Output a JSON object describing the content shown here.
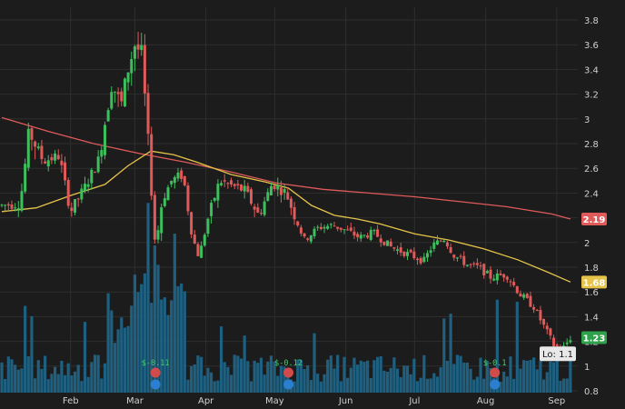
{
  "chart_data": {
    "type": "candlestick",
    "y_axis": {
      "range": [
        0.8,
        3.9
      ],
      "ticks": [
        "3.8",
        "3.6",
        "3.4",
        "3.2",
        "3",
        "2.8",
        "2.6",
        "2.4",
        "2.2",
        "2",
        "1.8",
        "1.6",
        "1.4",
        "1.2",
        "1",
        "0.8"
      ],
      "side": "right"
    },
    "x_axis": {
      "ticks": [
        {
          "label": "Feb",
          "day": 30
        },
        {
          "label": "Mar",
          "day": 58
        },
        {
          "label": "Apr",
          "day": 89
        },
        {
          "label": "May",
          "day": 119
        },
        {
          "label": "Jun",
          "day": 150
        },
        {
          "label": "Jul",
          "day": 180
        },
        {
          "label": "Aug",
          "day": 211
        },
        {
          "label": "Sep",
          "day": 242
        }
      ],
      "range_days": [
        0,
        248
      ]
    },
    "grid": true,
    "colors": {
      "background": "#1c1c1c",
      "grid": "#2e2e2e",
      "up": "#3cbf5c",
      "down": "#e05a5a",
      "volume": "#1f5f7f",
      "ma_long": "#e05a5a",
      "ma_short": "#e6c44a"
    },
    "price_tags": [
      {
        "label": "2.19",
        "value": 2.19,
        "color": "#e05a5a"
      },
      {
        "label": "1.68",
        "value": 1.68,
        "color": "#e6c44a"
      },
      {
        "label": "1.23",
        "value": 1.23,
        "color": "#2fa14a"
      }
    ],
    "low_marker": {
      "label": "Lo: 1.1",
      "value": 1.1
    },
    "earnings_events": [
      {
        "label": "$-0.11",
        "day": 67
      },
      {
        "label": "$-0.12",
        "day": 125
      },
      {
        "label": "$-0.1",
        "day": 215
      }
    ],
    "ma_long": [
      [
        0,
        3.01
      ],
      [
        20,
        2.9
      ],
      [
        40,
        2.8
      ],
      [
        60,
        2.72
      ],
      [
        80,
        2.65
      ],
      [
        100,
        2.57
      ],
      [
        120,
        2.48
      ],
      [
        140,
        2.43
      ],
      [
        160,
        2.4
      ],
      [
        180,
        2.37
      ],
      [
        200,
        2.33
      ],
      [
        220,
        2.29
      ],
      [
        240,
        2.23
      ],
      [
        248,
        2.19
      ]
    ],
    "ma_short": [
      [
        0,
        2.25
      ],
      [
        15,
        2.28
      ],
      [
        30,
        2.38
      ],
      [
        45,
        2.47
      ],
      [
        55,
        2.62
      ],
      [
        65,
        2.74
      ],
      [
        75,
        2.71
      ],
      [
        85,
        2.65
      ],
      [
        100,
        2.55
      ],
      [
        115,
        2.49
      ],
      [
        125,
        2.44
      ],
      [
        135,
        2.3
      ],
      [
        145,
        2.22
      ],
      [
        155,
        2.19
      ],
      [
        165,
        2.15
      ],
      [
        180,
        2.07
      ],
      [
        195,
        2.02
      ],
      [
        210,
        1.95
      ],
      [
        225,
        1.86
      ],
      [
        238,
        1.76
      ],
      [
        248,
        1.68
      ]
    ],
    "price_path": [
      [
        0,
        2.3
      ],
      [
        8,
        2.32
      ],
      [
        12,
        2.9
      ],
      [
        18,
        2.66
      ],
      [
        25,
        2.7
      ],
      [
        30,
        2.25
      ],
      [
        36,
        2.44
      ],
      [
        42,
        2.66
      ],
      [
        48,
        3.3
      ],
      [
        52,
        3.1
      ],
      [
        55,
        3.4
      ],
      [
        58,
        3.6
      ],
      [
        61,
        3.52
      ],
      [
        64,
        2.75
      ],
      [
        67,
        1.95
      ],
      [
        70,
        2.35
      ],
      [
        74,
        2.5
      ],
      [
        79,
        2.55
      ],
      [
        83,
        2.05
      ],
      [
        86,
        1.88
      ],
      [
        90,
        2.2
      ],
      [
        95,
        2.5
      ],
      [
        100,
        2.46
      ],
      [
        106,
        2.42
      ],
      [
        112,
        2.22
      ],
      [
        118,
        2.48
      ],
      [
        124,
        2.4
      ],
      [
        128,
        2.2
      ],
      [
        132,
        2.02
      ],
      [
        138,
        2.12
      ],
      [
        144,
        2.14
      ],
      [
        150,
        2.1
      ],
      [
        156,
        2.04
      ],
      [
        162,
        2.08
      ],
      [
        170,
        1.96
      ],
      [
        178,
        1.9
      ],
      [
        184,
        1.85
      ],
      [
        188,
        1.98
      ],
      [
        193,
        2.03
      ],
      [
        197,
        1.9
      ],
      [
        203,
        1.82
      ],
      [
        208,
        1.8
      ],
      [
        213,
        1.72
      ],
      [
        220,
        1.74
      ],
      [
        226,
        1.58
      ],
      [
        232,
        1.48
      ],
      [
        237,
        1.3
      ],
      [
        241,
        1.16
      ],
      [
        245,
        1.15
      ],
      [
        248,
        1.23
      ]
    ],
    "volume_range": [
      0,
      1
    ]
  }
}
